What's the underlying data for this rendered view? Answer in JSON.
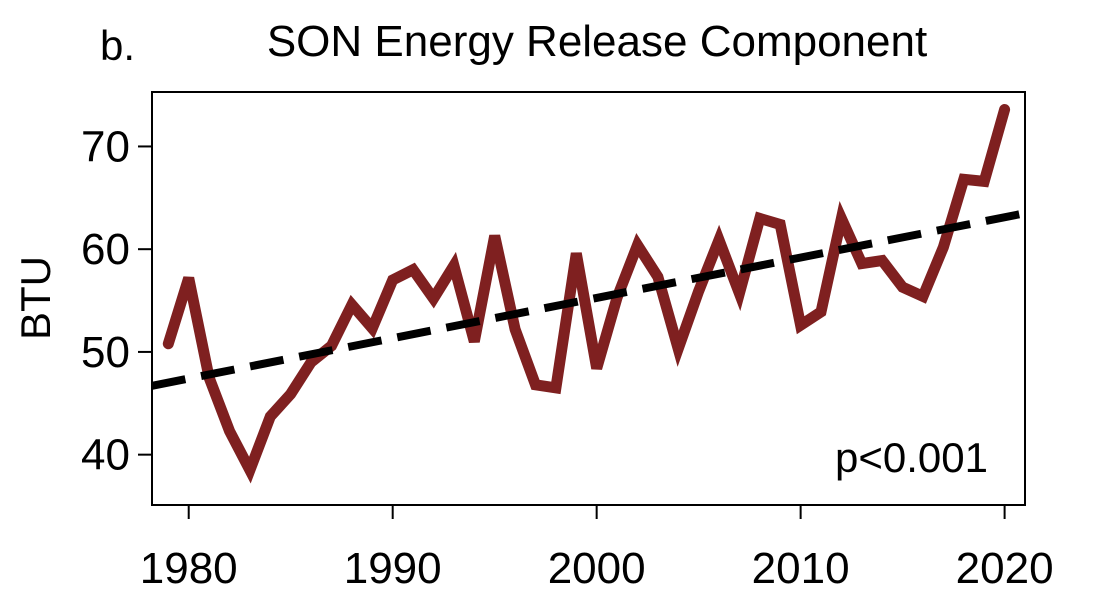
{
  "chart_data": {
    "type": "line",
    "panel_label": "b.",
    "title": "SON Energy Release Component",
    "xlabel": "",
    "ylabel": "BTU",
    "xlim": [
      1978.2,
      2021.0
    ],
    "ylim": [
      35.1,
      75.3
    ],
    "xticks": [
      1980,
      1990,
      2000,
      2010,
      2020
    ],
    "yticks": [
      40,
      50,
      60,
      70
    ],
    "grid": false,
    "annotation": "p<0.001",
    "colors": {
      "series": "#7f2020",
      "trend": "#000000"
    },
    "series": [
      {
        "style": "solid",
        "x": [
          1979,
          1980,
          1981,
          1982,
          1983,
          1984,
          1985,
          1986,
          1987,
          1988,
          1989,
          1990,
          1991,
          1992,
          1993,
          1994,
          1995,
          1996,
          1997,
          1998,
          1999,
          2000,
          2001,
          2002,
          2003,
          2004,
          2005,
          2006,
          2007,
          2008,
          2009,
          2010,
          2011,
          2012,
          2013,
          2014,
          2015,
          2016,
          2017,
          2018,
          2019,
          2020
        ],
        "y": [
          50.8,
          57.2,
          47.5,
          42.3,
          38.5,
          43.7,
          45.9,
          49.0,
          50.6,
          54.6,
          52.3,
          57.0,
          58.0,
          55.2,
          58.4,
          51.0,
          61.3,
          52.2,
          46.8,
          46.5,
          59.6,
          48.4,
          55.3,
          60.4,
          57.3,
          50.3,
          55.9,
          60.9,
          55.7,
          63.0,
          62.4,
          52.6,
          53.9,
          63.0,
          58.6,
          58.9,
          56.3,
          55.4,
          60.2,
          66.8,
          66.6,
          73.6
        ]
      },
      {
        "style": "dashed",
        "x": [
          1978.2,
          2021.0
        ],
        "y": [
          46.7,
          63.5
        ]
      }
    ]
  }
}
